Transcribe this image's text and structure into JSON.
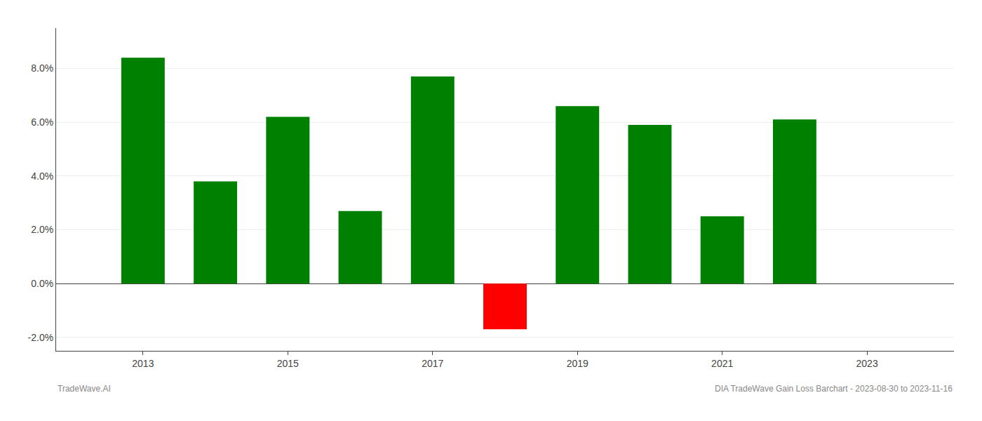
{
  "chart_data": {
    "type": "bar",
    "x": [
      2013,
      2014,
      2015,
      2016,
      2017,
      2018,
      2019,
      2020,
      2021,
      2022
    ],
    "values": [
      0.084,
      0.038,
      0.062,
      0.027,
      0.077,
      -0.017,
      0.066,
      0.059,
      0.025,
      0.061
    ],
    "colors": [
      "#008000",
      "#008000",
      "#008000",
      "#008000",
      "#008000",
      "#ff0000",
      "#008000",
      "#008000",
      "#008000",
      "#008000"
    ],
    "xlim": [
      2011.8,
      2024.2
    ],
    "xticks": [
      2013,
      2015,
      2017,
      2019,
      2021,
      2023
    ],
    "ylim": [
      -0.025,
      0.095
    ],
    "yticks": [
      {
        "value": -0.02,
        "label": "-2.0%"
      },
      {
        "value": 0.0,
        "label": "0.0%"
      },
      {
        "value": 0.02,
        "label": "2.0%"
      },
      {
        "value": 0.04,
        "label": "4.0%"
      },
      {
        "value": 0.06,
        "label": "6.0%"
      },
      {
        "value": 0.08,
        "label": "8.0%"
      }
    ],
    "grid": true,
    "annotations": [
      "TradeWave.AI",
      "DIA TradeWave Gain Loss Barchart - 2023-08-30 to 2023-11-16"
    ]
  }
}
